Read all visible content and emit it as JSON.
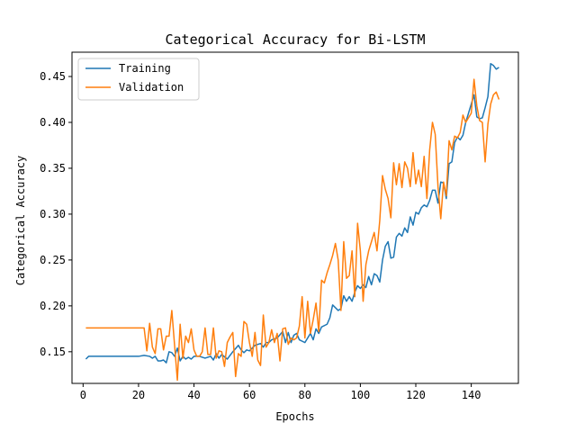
{
  "chart_data": {
    "type": "line",
    "title": "Categorical Accuracy for Bi-LSTM",
    "xlabel": "Epochs",
    "ylabel": "Categorical Accuracy",
    "xlim": [
      -4,
      157
    ],
    "ylim": [
      0.1155,
      0.4765
    ],
    "xticks": [
      0,
      20,
      40,
      60,
      80,
      100,
      120,
      140
    ],
    "yticks": [
      0.15,
      0.2,
      0.25,
      0.3,
      0.35,
      0.4,
      0.45
    ],
    "ytick_labels": [
      "0.15",
      "0.20",
      "0.25",
      "0.30",
      "0.35",
      "0.40",
      "0.45"
    ],
    "xtick_labels": [
      "0",
      "20",
      "40",
      "60",
      "80",
      "100",
      "120",
      "140"
    ],
    "grid": false,
    "legend": "top-left",
    "series": [
      {
        "name": "Training",
        "color": "#1f77b4",
        "points": [
          [
            1,
            0.142
          ],
          [
            2,
            0.145
          ],
          [
            5,
            0.145
          ],
          [
            10,
            0.145
          ],
          [
            15,
            0.145
          ],
          [
            20,
            0.145
          ],
          [
            22,
            0.146
          ],
          [
            24,
            0.145
          ],
          [
            25,
            0.143
          ],
          [
            26,
            0.145
          ],
          [
            27,
            0.14
          ],
          [
            28,
            0.14
          ],
          [
            29,
            0.141
          ],
          [
            30,
            0.138
          ],
          [
            31,
            0.15
          ],
          [
            32,
            0.149
          ],
          [
            33,
            0.145
          ],
          [
            34,
            0.154
          ],
          [
            35,
            0.14
          ],
          [
            36,
            0.145
          ],
          [
            37,
            0.142
          ],
          [
            38,
            0.144
          ],
          [
            39,
            0.142
          ],
          [
            40,
            0.145
          ],
          [
            42,
            0.145
          ],
          [
            44,
            0.143
          ],
          [
            46,
            0.145
          ],
          [
            47,
            0.141
          ],
          [
            48,
            0.148
          ],
          [
            49,
            0.143
          ],
          [
            50,
            0.147
          ],
          [
            52,
            0.142
          ],
          [
            54,
            0.15
          ],
          [
            56,
            0.157
          ],
          [
            57,
            0.152
          ],
          [
            58,
            0.149
          ],
          [
            59,
            0.152
          ],
          [
            60,
            0.151
          ],
          [
            62,
            0.157
          ],
          [
            64,
            0.159
          ],
          [
            65,
            0.155
          ],
          [
            66,
            0.16
          ],
          [
            67,
            0.16
          ],
          [
            68,
            0.163
          ],
          [
            70,
            0.165
          ],
          [
            72,
            0.172
          ],
          [
            73,
            0.16
          ],
          [
            74,
            0.171
          ],
          [
            75,
            0.16
          ],
          [
            76,
            0.168
          ],
          [
            77,
            0.17
          ],
          [
            78,
            0.163
          ],
          [
            80,
            0.16
          ],
          [
            82,
            0.17
          ],
          [
            83,
            0.163
          ],
          [
            84,
            0.175
          ],
          [
            85,
            0.17
          ],
          [
            86,
            0.177
          ],
          [
            88,
            0.18
          ],
          [
            89,
            0.187
          ],
          [
            90,
            0.201
          ],
          [
            92,
            0.195
          ],
          [
            93,
            0.197
          ],
          [
            94,
            0.211
          ],
          [
            95,
            0.205
          ],
          [
            96,
            0.21
          ],
          [
            97,
            0.205
          ],
          [
            98,
            0.215
          ],
          [
            99,
            0.222
          ],
          [
            100,
            0.219
          ],
          [
            101,
            0.223
          ],
          [
            102,
            0.22
          ],
          [
            103,
            0.232
          ],
          [
            104,
            0.223
          ],
          [
            105,
            0.235
          ],
          [
            106,
            0.233
          ],
          [
            107,
            0.226
          ],
          [
            108,
            0.25
          ],
          [
            109,
            0.265
          ],
          [
            110,
            0.27
          ],
          [
            111,
            0.252
          ],
          [
            112,
            0.253
          ],
          [
            113,
            0.275
          ],
          [
            114,
            0.279
          ],
          [
            115,
            0.276
          ],
          [
            116,
            0.285
          ],
          [
            117,
            0.28
          ],
          [
            118,
            0.297
          ],
          [
            119,
            0.288
          ],
          [
            120,
            0.302
          ],
          [
            121,
            0.3
          ],
          [
            122,
            0.307
          ],
          [
            123,
            0.31
          ],
          [
            124,
            0.308
          ],
          [
            125,
            0.315
          ],
          [
            126,
            0.326
          ],
          [
            127,
            0.326
          ],
          [
            128,
            0.312
          ],
          [
            129,
            0.335
          ],
          [
            130,
            0.334
          ],
          [
            131,
            0.317
          ],
          [
            132,
            0.355
          ],
          [
            133,
            0.357
          ],
          [
            134,
            0.378
          ],
          [
            135,
            0.384
          ],
          [
            136,
            0.381
          ],
          [
            137,
            0.386
          ],
          [
            138,
            0.4
          ],
          [
            139,
            0.41
          ],
          [
            140,
            0.42
          ],
          [
            141,
            0.43
          ],
          [
            142,
            0.406
          ],
          [
            143,
            0.404
          ],
          [
            144,
            0.405
          ],
          [
            145,
            0.416
          ],
          [
            146,
            0.428
          ],
          [
            147,
            0.464
          ],
          [
            148,
            0.462
          ],
          [
            149,
            0.458
          ],
          [
            150,
            0.46
          ]
        ]
      },
      {
        "name": "Validation",
        "color": "#ff7f0e",
        "points": [
          [
            1,
            0.176
          ],
          [
            5,
            0.176
          ],
          [
            10,
            0.176
          ],
          [
            15,
            0.176
          ],
          [
            20,
            0.176
          ],
          [
            22,
            0.176
          ],
          [
            23,
            0.151
          ],
          [
            24,
            0.181
          ],
          [
            25,
            0.155
          ],
          [
            26,
            0.148
          ],
          [
            27,
            0.175
          ],
          [
            28,
            0.175
          ],
          [
            29,
            0.152
          ],
          [
            30,
            0.167
          ],
          [
            31,
            0.167
          ],
          [
            32,
            0.195
          ],
          [
            33,
            0.157
          ],
          [
            34,
            0.119
          ],
          [
            35,
            0.18
          ],
          [
            36,
            0.143
          ],
          [
            37,
            0.167
          ],
          [
            38,
            0.16
          ],
          [
            39,
            0.175
          ],
          [
            40,
            0.152
          ],
          [
            41,
            0.145
          ],
          [
            42,
            0.145
          ],
          [
            43,
            0.15
          ],
          [
            44,
            0.176
          ],
          [
            45,
            0.147
          ],
          [
            46,
            0.147
          ],
          [
            47,
            0.176
          ],
          [
            48,
            0.143
          ],
          [
            49,
            0.151
          ],
          [
            50,
            0.15
          ],
          [
            51,
            0.134
          ],
          [
            52,
            0.16
          ],
          [
            53,
            0.166
          ],
          [
            54,
            0.171
          ],
          [
            55,
            0.123
          ],
          [
            56,
            0.148
          ],
          [
            57,
            0.145
          ],
          [
            58,
            0.183
          ],
          [
            59,
            0.18
          ],
          [
            60,
            0.16
          ],
          [
            61,
            0.145
          ],
          [
            62,
            0.171
          ],
          [
            63,
            0.141
          ],
          [
            64,
            0.135
          ],
          [
            65,
            0.19
          ],
          [
            66,
            0.155
          ],
          [
            67,
            0.16
          ],
          [
            68,
            0.174
          ],
          [
            69,
            0.16
          ],
          [
            70,
            0.17
          ],
          [
            71,
            0.14
          ],
          [
            72,
            0.175
          ],
          [
            73,
            0.176
          ],
          [
            74,
            0.158
          ],
          [
            75,
            0.165
          ],
          [
            76,
            0.163
          ],
          [
            77,
            0.165
          ],
          [
            78,
            0.178
          ],
          [
            79,
            0.21
          ],
          [
            80,
            0.165
          ],
          [
            81,
            0.205
          ],
          [
            82,
            0.17
          ],
          [
            83,
            0.185
          ],
          [
            84,
            0.203
          ],
          [
            85,
            0.172
          ],
          [
            86,
            0.228
          ],
          [
            87,
            0.225
          ],
          [
            88,
            0.236
          ],
          [
            89,
            0.245
          ],
          [
            90,
            0.255
          ],
          [
            91,
            0.268
          ],
          [
            92,
            0.25
          ],
          [
            93,
            0.195
          ],
          [
            94,
            0.27
          ],
          [
            95,
            0.23
          ],
          [
            96,
            0.233
          ],
          [
            97,
            0.26
          ],
          [
            98,
            0.21
          ],
          [
            99,
            0.29
          ],
          [
            100,
            0.26
          ],
          [
            101,
            0.205
          ],
          [
            102,
            0.245
          ],
          [
            103,
            0.26
          ],
          [
            104,
            0.27
          ],
          [
            105,
            0.28
          ],
          [
            106,
            0.26
          ],
          [
            107,
            0.293
          ],
          [
            108,
            0.342
          ],
          [
            109,
            0.327
          ],
          [
            110,
            0.317
          ],
          [
            111,
            0.296
          ],
          [
            112,
            0.356
          ],
          [
            113,
            0.332
          ],
          [
            114,
            0.355
          ],
          [
            115,
            0.329
          ],
          [
            116,
            0.357
          ],
          [
            117,
            0.35
          ],
          [
            118,
            0.33
          ],
          [
            119,
            0.367
          ],
          [
            120,
            0.333
          ],
          [
            121,
            0.348
          ],
          [
            122,
            0.33
          ],
          [
            123,
            0.363
          ],
          [
            124,
            0.317
          ],
          [
            125,
            0.37
          ],
          [
            126,
            0.4
          ],
          [
            127,
            0.387
          ],
          [
            128,
            0.33
          ],
          [
            129,
            0.295
          ],
          [
            130,
            0.335
          ],
          [
            131,
            0.32
          ],
          [
            132,
            0.38
          ],
          [
            133,
            0.37
          ],
          [
            134,
            0.385
          ],
          [
            135,
            0.383
          ],
          [
            136,
            0.389
          ],
          [
            137,
            0.408
          ],
          [
            138,
            0.4
          ],
          [
            139,
            0.405
          ],
          [
            140,
            0.41
          ],
          [
            141,
            0.447
          ],
          [
            142,
            0.418
          ],
          [
            143,
            0.402
          ],
          [
            144,
            0.4
          ],
          [
            145,
            0.357
          ],
          [
            146,
            0.398
          ],
          [
            147,
            0.42
          ],
          [
            148,
            0.43
          ],
          [
            149,
            0.433
          ],
          [
            150,
            0.425
          ]
        ]
      }
    ]
  }
}
